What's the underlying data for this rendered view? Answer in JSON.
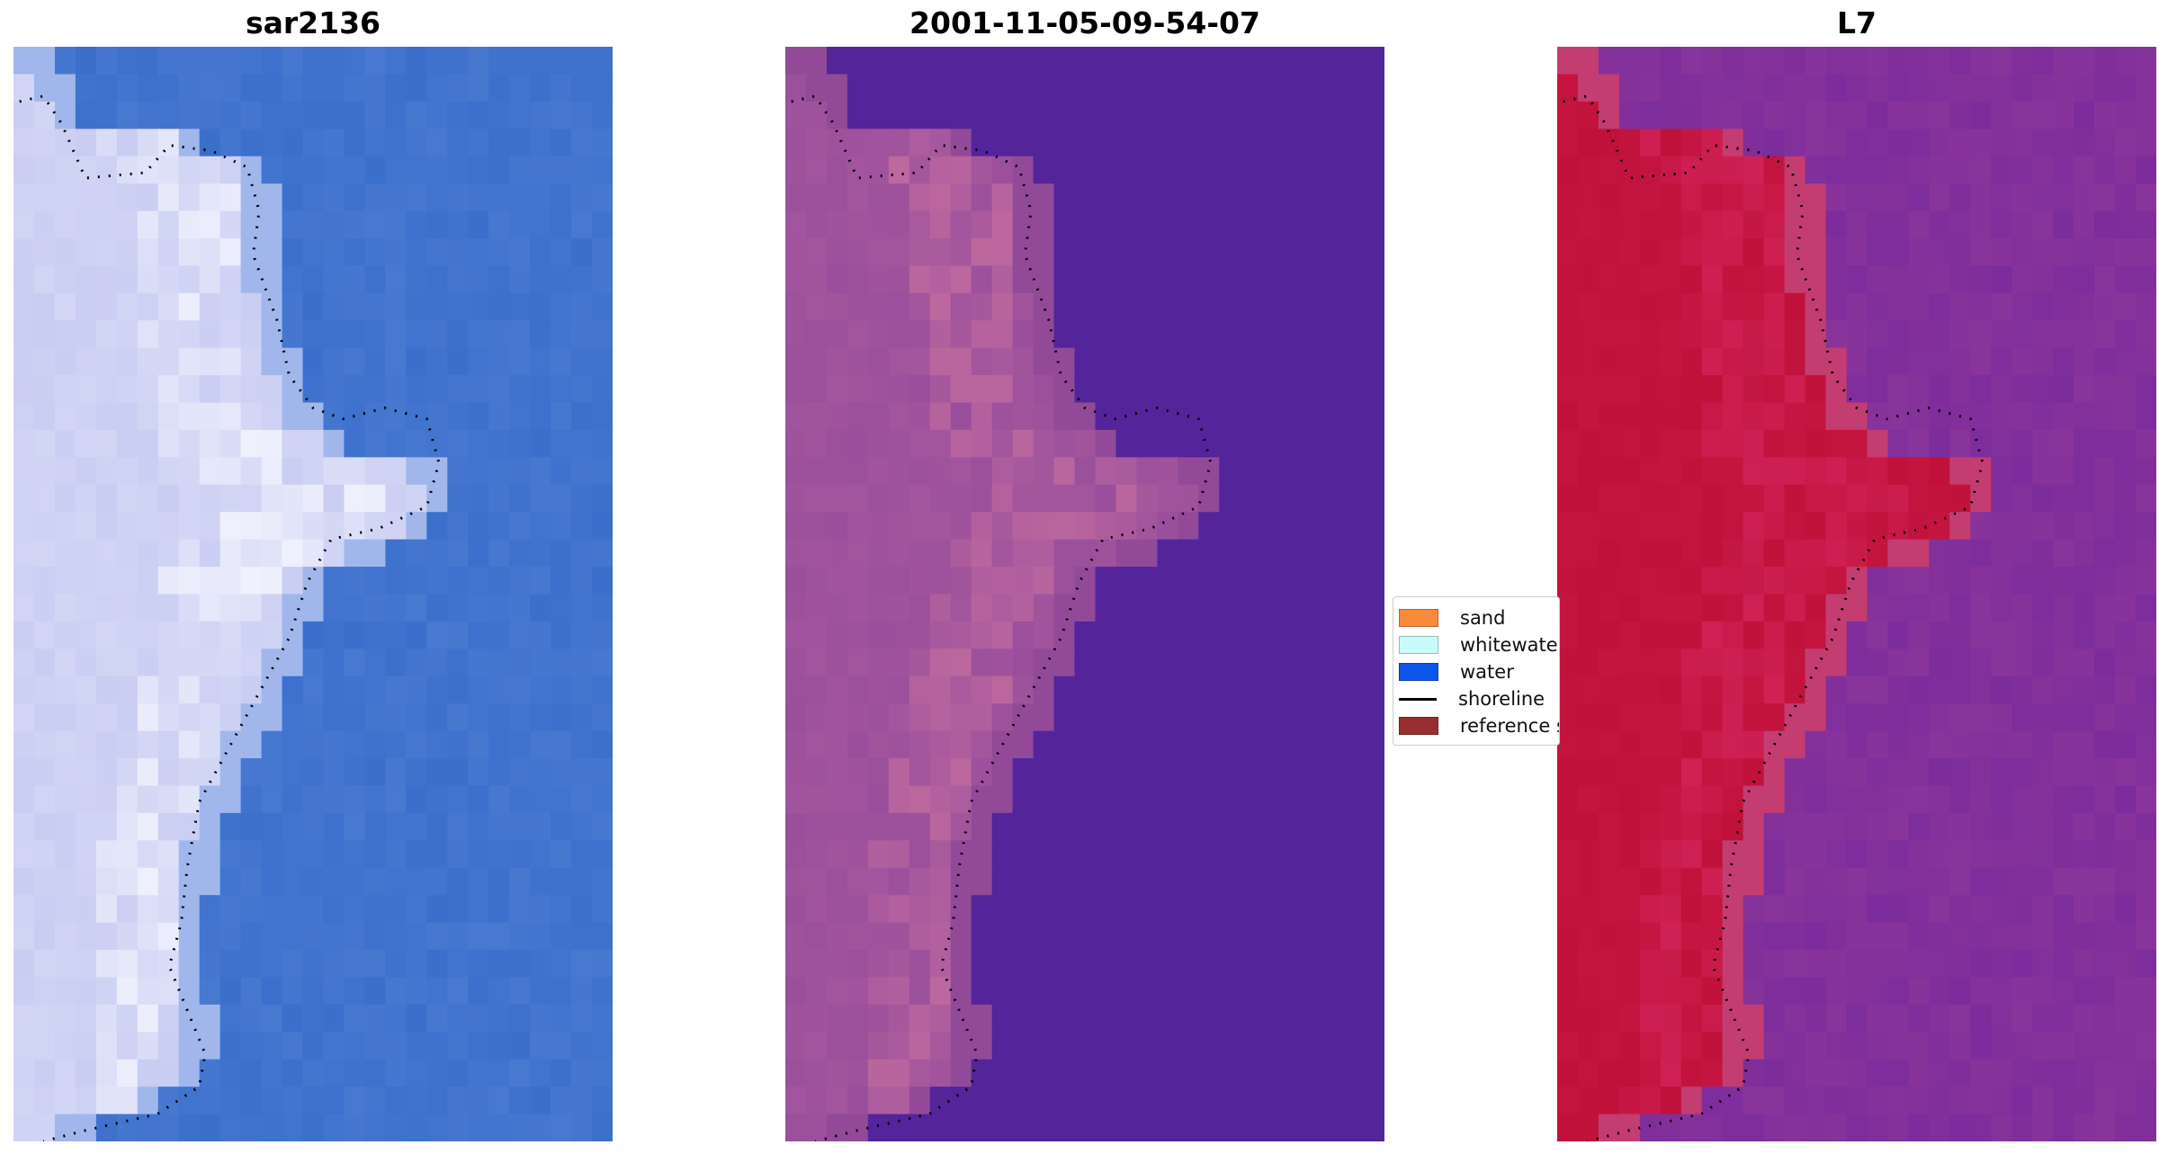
{
  "panels": [
    {
      "title": "sar2136",
      "colors": {
        "bg": "#3a6fcc",
        "land": "#c9cdf2",
        "bright": "#f7f8ff",
        "mid": "#86a6e6"
      }
    },
    {
      "title": "2001-11-05-09-54-07",
      "colors": {
        "bg": "#54249a",
        "land": "#9a4f9c",
        "bright": "#c46d9f",
        "mid": "#8c4695"
      }
    },
    {
      "title": "L7",
      "colors": {
        "bg": "#7c2c9c",
        "land": "#c0113a",
        "bright": "#d2245a",
        "mid": "#c75a95"
      }
    }
  ],
  "legend": {
    "items": [
      {
        "label": "sand",
        "color": "#f98a3a",
        "kind": "patch"
      },
      {
        "label": "whitewater",
        "color": "#c9fbfb",
        "kind": "patch"
      },
      {
        "label": "water",
        "color": "#0d55ec",
        "kind": "patch"
      },
      {
        "label": "shoreline",
        "color": "#000000",
        "kind": "line"
      },
      {
        "label": "reference shoreline",
        "color": "#962f31",
        "kind": "patch"
      }
    ]
  }
}
